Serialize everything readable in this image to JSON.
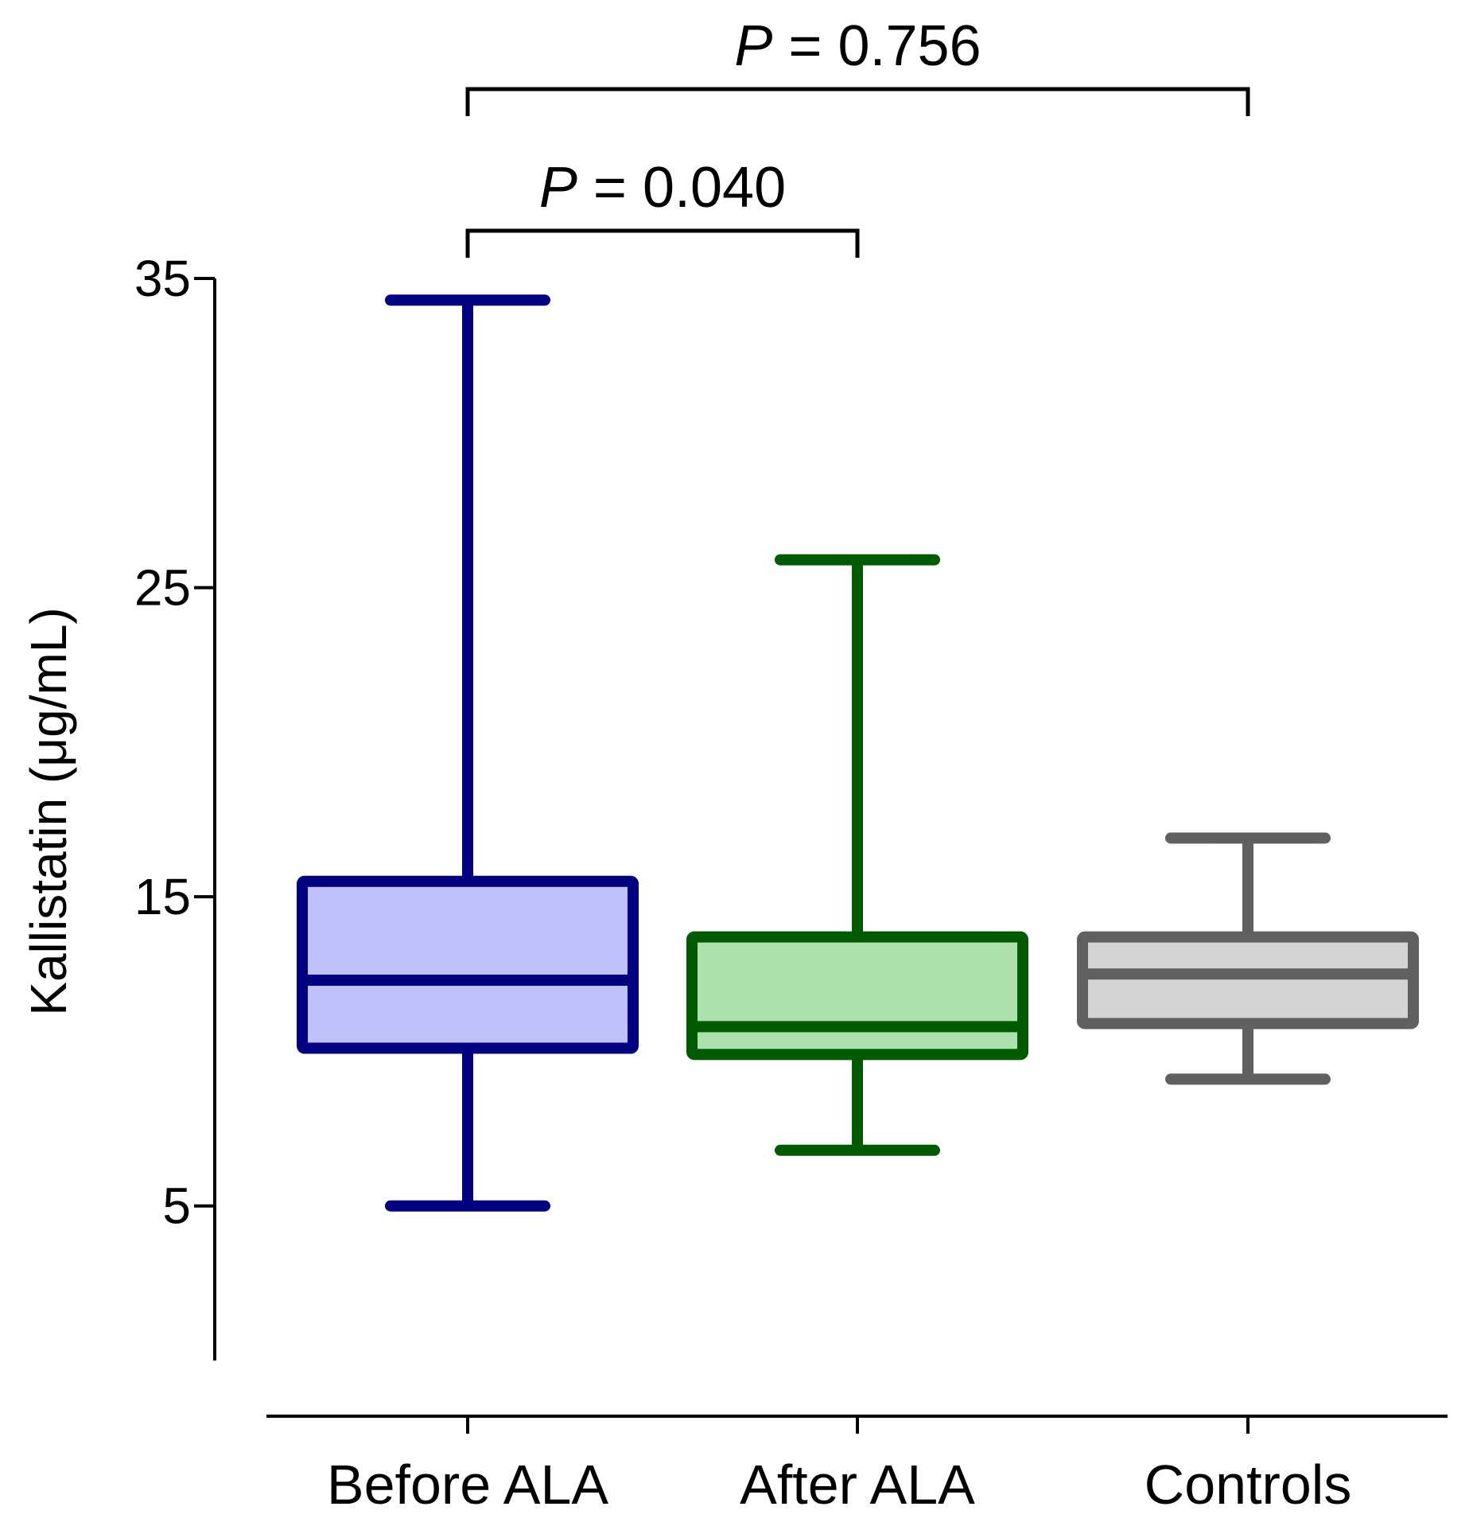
{
  "chart_data": {
    "type": "box",
    "ylabel": "Kallistatin (μg/mL)",
    "ylim": [
      0,
      35
    ],
    "yticks": [
      5,
      15,
      25,
      35
    ],
    "categories": [
      "Before ALA",
      "After ALA",
      "Controls"
    ],
    "boxes": [
      {
        "category": "Before ALA",
        "whisker_low": 5.0,
        "q1": 10.1,
        "median": 12.3,
        "q3": 15.5,
        "whisker_high": 34.3,
        "stroke": "#000080",
        "fill": "#c0c0fa"
      },
      {
        "category": "After ALA",
        "whisker_low": 6.8,
        "q1": 9.9,
        "median": 10.8,
        "q3": 13.7,
        "whisker_high": 25.9,
        "stroke": "#005a00",
        "fill": "#aee0ae"
      },
      {
        "category": "Controls",
        "whisker_low": 9.1,
        "q1": 10.9,
        "median": 12.5,
        "q3": 13.7,
        "whisker_high": 16.9,
        "stroke": "#606060",
        "fill": "#d4d4d4"
      }
    ],
    "comparisons": [
      {
        "from": "Before ALA",
        "to": "After ALA",
        "p_symbol": "P",
        "p_text": " = 0.040"
      },
      {
        "from": "Before ALA",
        "to": "Controls",
        "p_symbol": "P",
        "p_text": " = 0.756"
      }
    ]
  }
}
